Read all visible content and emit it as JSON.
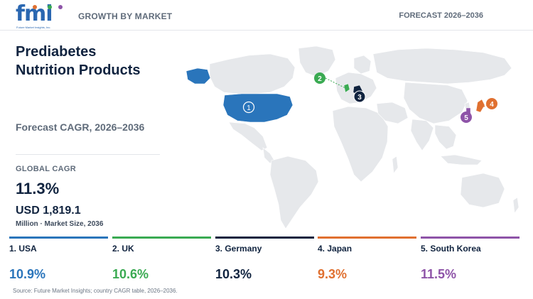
{
  "brand": {
    "logo_text": "fmi",
    "logo_sub": "Future Market Insights, Inc."
  },
  "header": {
    "left": "GROWTH BY MARKET",
    "right": "FORECAST 2026–2036"
  },
  "title": {
    "line1": "Prediabetes",
    "line2": "Nutrition Products"
  },
  "forecast_label": "Forecast CAGR, 2026–2036",
  "global": {
    "label": "GLOBAL CAGR",
    "value": "11.3%",
    "market_size": "USD 1,819.1",
    "market_unit": "Million · Market Size, 2036"
  },
  "countries": [
    {
      "rank": "1",
      "name": "1. USA",
      "cagr": "10.9%",
      "color": "#2a75bb"
    },
    {
      "rank": "2",
      "name": "2. UK",
      "cagr": "10.6%",
      "color": "#3aaa52"
    },
    {
      "rank": "3",
      "name": "3. Germany",
      "cagr": "10.3%",
      "color": "#10233f"
    },
    {
      "rank": "4",
      "name": "4. Japan",
      "cagr": "9.3%",
      "color": "#e07030"
    },
    {
      "rank": "5",
      "name": "5. South Korea",
      "cagr": "11.5%",
      "color": "#8e54a8"
    }
  ],
  "source": "Source: Future Market Insights; country CAGR table, 2026–2036.",
  "colors": {
    "land": "#e6e8eb",
    "land_border": "#ffffff",
    "text_dark": "#10233f",
    "text_muted": "#5f6b7a"
  }
}
